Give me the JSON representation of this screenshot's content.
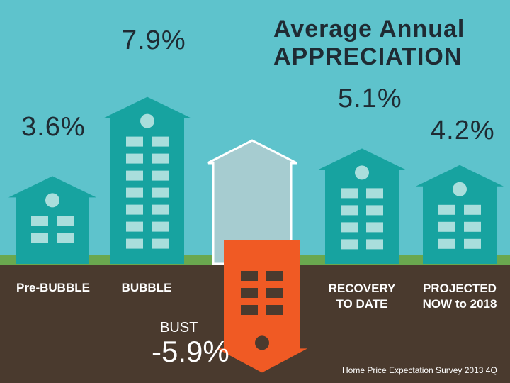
{
  "chart_data": {
    "type": "bar",
    "title_line1": "Average Annual",
    "title_line2": "APPRECIATION",
    "categories": [
      "Pre-BUBBLE",
      "BUBBLE",
      "BUST",
      "RECOVERY TO DATE",
      "PROJECTED NOW to 2018"
    ],
    "category_lines": [
      [
        "Pre-BUBBLE"
      ],
      [
        "BUBBLE"
      ],
      [
        "BUST"
      ],
      [
        "RECOVERY",
        "TO DATE"
      ],
      [
        "PROJECTED",
        "NOW to 2018"
      ]
    ],
    "values": [
      3.6,
      7.9,
      -5.9,
      5.1,
      4.2
    ],
    "value_labels": [
      "3.6%",
      "7.9%",
      "-5.9%",
      "5.1%",
      "4.2%"
    ],
    "source": "Home Price Expectation Survey 2013 4Q"
  },
  "colors": {
    "sky": "#5ec3cc",
    "ground": "#4a3a2e",
    "grass": "#6aa84f",
    "building": "#17a3a0",
    "building_window": "#a9dedc",
    "ghost_building": "#a6ccd0",
    "bust": "#f05a24",
    "bust_window": "#4a3a2e"
  }
}
